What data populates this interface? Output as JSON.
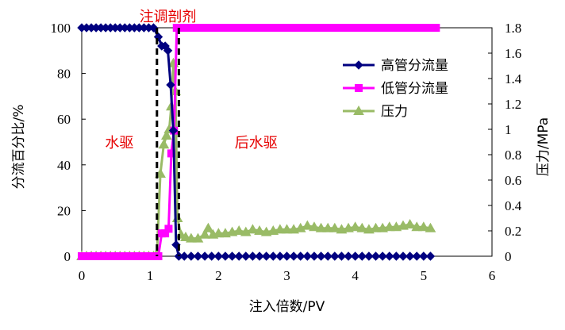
{
  "chart_data": {
    "type": "line",
    "xlabel": "注入倍数/PV",
    "ylabel_left": "分流百分比/%",
    "ylabel_right": "压力/MPa",
    "xlim": [
      0,
      6
    ],
    "ylim_left": [
      0,
      100
    ],
    "ylim_right": [
      0,
      1.8
    ],
    "x_ticks": [
      0,
      1,
      2,
      3,
      4,
      5,
      6
    ],
    "y_ticks_left": [
      0,
      20,
      40,
      60,
      80,
      100
    ],
    "y_ticks_right": [
      "0",
      "0.2",
      "0.4",
      "0.6",
      "0.8",
      "1",
      "1.2",
      "1.4",
      "1.6",
      "1.8"
    ],
    "grid": false,
    "legend_position": "top-right",
    "colors": {
      "high": "#000080",
      "low": "#ff00ff",
      "pressure": "#99bb66",
      "divider": "#000000",
      "annotation": "#e60000"
    },
    "annotations": {
      "top": "注调剖剂",
      "left": "水驱",
      "right": "后水驱"
    },
    "dividers_x": [
      1.1,
      1.42
    ],
    "series": [
      {
        "name": "高管分流量",
        "axis": "left",
        "marker": "diamond",
        "points": [
          [
            0.0,
            100
          ],
          [
            0.07,
            100
          ],
          [
            0.14,
            100
          ],
          [
            0.21,
            100
          ],
          [
            0.28,
            100
          ],
          [
            0.35,
            100
          ],
          [
            0.42,
            100
          ],
          [
            0.49,
            100
          ],
          [
            0.56,
            100
          ],
          [
            0.63,
            100
          ],
          [
            0.7,
            100
          ],
          [
            0.77,
            100
          ],
          [
            0.84,
            100
          ],
          [
            0.91,
            100
          ],
          [
            0.98,
            100
          ],
          [
            1.05,
            100
          ],
          [
            1.12,
            96
          ],
          [
            1.17,
            92
          ],
          [
            1.22,
            92
          ],
          [
            1.26,
            90
          ],
          [
            1.3,
            75
          ],
          [
            1.34,
            55
          ],
          [
            1.38,
            5
          ],
          [
            1.42,
            0
          ],
          [
            1.5,
            0
          ],
          [
            1.6,
            0
          ],
          [
            1.7,
            0
          ],
          [
            1.8,
            0
          ],
          [
            1.9,
            0
          ],
          [
            2.0,
            0
          ],
          [
            2.1,
            0
          ],
          [
            2.2,
            0
          ],
          [
            2.3,
            0
          ],
          [
            2.4,
            0
          ],
          [
            2.5,
            0
          ],
          [
            2.6,
            0
          ],
          [
            2.7,
            0
          ],
          [
            2.8,
            0
          ],
          [
            2.9,
            0
          ],
          [
            3.0,
            0
          ],
          [
            3.1,
            0
          ],
          [
            3.2,
            0
          ],
          [
            3.3,
            0
          ],
          [
            3.4,
            0
          ],
          [
            3.5,
            0
          ],
          [
            3.6,
            0
          ],
          [
            3.7,
            0
          ],
          [
            3.8,
            0
          ],
          [
            3.9,
            0
          ],
          [
            4.0,
            0
          ],
          [
            4.1,
            0
          ],
          [
            4.2,
            0
          ],
          [
            4.3,
            0
          ],
          [
            4.4,
            0
          ],
          [
            4.5,
            0
          ],
          [
            4.6,
            0
          ],
          [
            4.7,
            0
          ],
          [
            4.8,
            0
          ],
          [
            4.9,
            0
          ],
          [
            5.0,
            0
          ],
          [
            5.1,
            0
          ]
        ]
      },
      {
        "name": "低管分流量",
        "axis": "left",
        "marker": "square",
        "points": [
          [
            0.0,
            0
          ],
          [
            0.07,
            0
          ],
          [
            0.14,
            0
          ],
          [
            0.21,
            0
          ],
          [
            0.28,
            0
          ],
          [
            0.35,
            0
          ],
          [
            0.42,
            0
          ],
          [
            0.49,
            0
          ],
          [
            0.56,
            0
          ],
          [
            0.63,
            0
          ],
          [
            0.7,
            0
          ],
          [
            0.77,
            0
          ],
          [
            0.84,
            0
          ],
          [
            0.91,
            0
          ],
          [
            0.98,
            0
          ],
          [
            1.05,
            0
          ],
          [
            1.12,
            0
          ],
          [
            1.17,
            10
          ],
          [
            1.22,
            10
          ],
          [
            1.27,
            12
          ],
          [
            1.31,
            45
          ],
          [
            1.35,
            55
          ],
          [
            1.39,
            100
          ],
          [
            1.44,
            100
          ],
          [
            1.52,
            100
          ],
          [
            1.62,
            100
          ],
          [
            1.72,
            100
          ],
          [
            1.82,
            100
          ],
          [
            1.92,
            100
          ],
          [
            2.02,
            100
          ],
          [
            2.12,
            100
          ],
          [
            2.22,
            100
          ],
          [
            2.32,
            100
          ],
          [
            2.42,
            100
          ],
          [
            2.52,
            100
          ],
          [
            2.62,
            100
          ],
          [
            2.72,
            100
          ],
          [
            2.82,
            100
          ],
          [
            2.92,
            100
          ],
          [
            3.02,
            100
          ],
          [
            3.12,
            100
          ],
          [
            3.22,
            100
          ],
          [
            3.32,
            100
          ],
          [
            3.42,
            100
          ],
          [
            3.52,
            100
          ],
          [
            3.62,
            100
          ],
          [
            3.72,
            100
          ],
          [
            3.82,
            100
          ],
          [
            3.92,
            100
          ],
          [
            4.02,
            100
          ],
          [
            4.12,
            100
          ],
          [
            4.22,
            100
          ],
          [
            4.32,
            100
          ],
          [
            4.42,
            100
          ],
          [
            4.52,
            100
          ],
          [
            4.62,
            100
          ],
          [
            4.72,
            100
          ],
          [
            4.82,
            100
          ],
          [
            4.92,
            100
          ],
          [
            5.02,
            100
          ],
          [
            5.12,
            100
          ],
          [
            5.18,
            100
          ]
        ]
      },
      {
        "name": "压力",
        "axis": "right",
        "marker": "triangle",
        "points": [
          [
            0.0,
            0
          ],
          [
            0.07,
            0
          ],
          [
            0.14,
            0
          ],
          [
            0.21,
            0
          ],
          [
            0.28,
            0
          ],
          [
            0.35,
            0
          ],
          [
            0.42,
            0
          ],
          [
            0.49,
            0
          ],
          [
            0.56,
            0
          ],
          [
            0.63,
            0
          ],
          [
            0.7,
            0
          ],
          [
            0.77,
            0
          ],
          [
            0.84,
            0
          ],
          [
            0.91,
            0
          ],
          [
            0.98,
            0
          ],
          [
            1.05,
            0
          ],
          [
            1.1,
            0.02
          ],
          [
            1.15,
            0.65
          ],
          [
            1.2,
            0.88
          ],
          [
            1.24,
            0.95
          ],
          [
            1.28,
            1.0
          ],
          [
            1.31,
            1.18
          ],
          [
            1.34,
            1.52
          ],
          [
            1.37,
            1.3
          ],
          [
            1.4,
            0.3
          ],
          [
            1.45,
            0.17
          ],
          [
            1.52,
            0.15
          ],
          [
            1.6,
            0.14
          ],
          [
            1.7,
            0.14
          ],
          [
            1.8,
            0.17
          ],
          [
            1.85,
            0.22
          ],
          [
            1.92,
            0.17
          ],
          [
            2.0,
            0.18
          ],
          [
            2.1,
            0.18
          ],
          [
            2.2,
            0.19
          ],
          [
            2.3,
            0.2
          ],
          [
            2.4,
            0.19
          ],
          [
            2.5,
            0.21
          ],
          [
            2.6,
            0.2
          ],
          [
            2.7,
            0.19
          ],
          [
            2.8,
            0.2
          ],
          [
            2.9,
            0.21
          ],
          [
            3.0,
            0.21
          ],
          [
            3.1,
            0.21
          ],
          [
            3.2,
            0.22
          ],
          [
            3.3,
            0.24
          ],
          [
            3.4,
            0.23
          ],
          [
            3.5,
            0.22
          ],
          [
            3.6,
            0.22
          ],
          [
            3.7,
            0.22
          ],
          [
            3.8,
            0.21
          ],
          [
            3.9,
            0.22
          ],
          [
            4.0,
            0.23
          ],
          [
            4.1,
            0.22
          ],
          [
            4.2,
            0.21
          ],
          [
            4.3,
            0.22
          ],
          [
            4.4,
            0.22
          ],
          [
            4.5,
            0.23
          ],
          [
            4.6,
            0.23
          ],
          [
            4.7,
            0.24
          ],
          [
            4.8,
            0.25
          ],
          [
            4.9,
            0.23
          ],
          [
            5.0,
            0.23
          ],
          [
            5.1,
            0.22
          ]
        ]
      }
    ]
  }
}
